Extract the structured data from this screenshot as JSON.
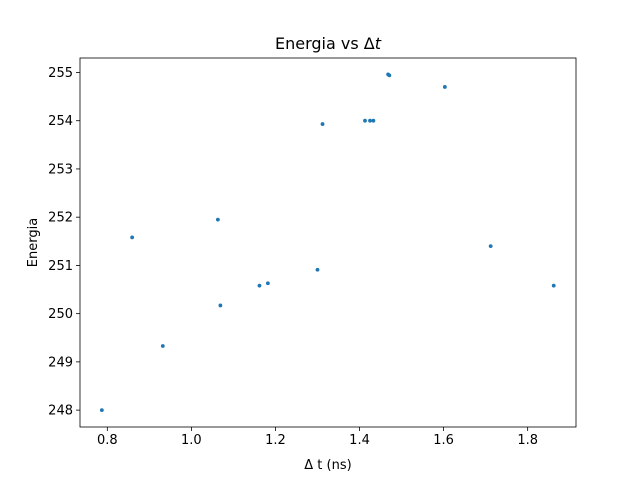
{
  "chart_data": {
    "type": "scatter",
    "title_prefix": "Energia vs Δ",
    "title_italic": "t",
    "xlabel": "Δ t (ns)",
    "ylabel": "Energia",
    "xlim": [
      0.735,
      1.915
    ],
    "ylim": [
      247.65,
      255.3
    ],
    "xticks": [
      0.8,
      1.0,
      1.2,
      1.4,
      1.6,
      1.8
    ],
    "xtick_labels": [
      "0.8",
      "1.0",
      "1.2",
      "1.4",
      "1.6",
      "1.8"
    ],
    "yticks": [
      248,
      249,
      250,
      251,
      252,
      253,
      254,
      255
    ],
    "ytick_labels": [
      "248",
      "249",
      "250",
      "251",
      "252",
      "253",
      "254",
      "255"
    ],
    "marker_color": "#1f77b4",
    "grid": false,
    "points": [
      {
        "x": 0.787,
        "y": 248.0
      },
      {
        "x": 0.859,
        "y": 251.58
      },
      {
        "x": 0.932,
        "y": 249.33
      },
      {
        "x": 1.063,
        "y": 251.95
      },
      {
        "x": 1.069,
        "y": 250.17
      },
      {
        "x": 1.162,
        "y": 250.58
      },
      {
        "x": 1.182,
        "y": 250.63
      },
      {
        "x": 1.3,
        "y": 250.91
      },
      {
        "x": 1.312,
        "y": 253.93
      },
      {
        "x": 1.413,
        "y": 254.0
      },
      {
        "x": 1.425,
        "y": 254.0
      },
      {
        "x": 1.433,
        "y": 254.0
      },
      {
        "x": 1.468,
        "y": 254.96
      },
      {
        "x": 1.471,
        "y": 254.94
      },
      {
        "x": 1.603,
        "y": 254.7
      },
      {
        "x": 1.712,
        "y": 251.4
      },
      {
        "x": 1.862,
        "y": 250.58
      }
    ]
  }
}
